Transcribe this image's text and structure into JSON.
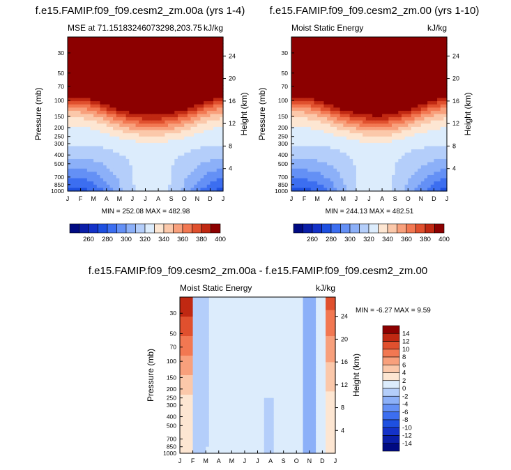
{
  "panels": {
    "left": {
      "title": "f.e15.FAMIP.f09_f09.cesm2_zm.00a (yrs 1-4)",
      "subtitle_left": "MSE at 71.15183246073298,203.75",
      "subtitle_right": "kJ/kg",
      "minmax": "MIN = 252.08  MAX = 482.98"
    },
    "right": {
      "title": "f.e15.FAMIP.f09_f09.cesm2_zm.00 (yrs 1-10)",
      "subtitle_left": "Moist Static Energy",
      "subtitle_right": "kJ/kg",
      "minmax": "MIN = 244.13  MAX = 482.51"
    },
    "diff": {
      "title": "f.e15.FAMIP.f09_f09.cesm2_zm.00a - f.e15.FAMIP.f09_f09.cesm2_zm.00",
      "subtitle_left": "Moist Static Energy",
      "subtitle_right": "kJ/kg",
      "minmax": "MIN =  -6.27  MAX =   9.59"
    }
  },
  "chart_data": [
    {
      "type": "heatmap",
      "title": "f.e15.FAMIP.f09_f09.cesm2_zm.00a (yrs 1-4)",
      "subtitle": "MSE at 71.15183246073298,203.75",
      "units": "kJ/kg",
      "xlabel": "",
      "ylabel": "Pressure (mb)",
      "ylabel_right": "Height (km)",
      "x_ticks": [
        "J",
        "F",
        "M",
        "A",
        "M",
        "J",
        "J",
        "A",
        "S",
        "O",
        "N",
        "D",
        "J"
      ],
      "y_ticks": [
        30,
        50,
        70,
        100,
        150,
        200,
        250,
        300,
        400,
        500,
        700,
        850,
        1000
      ],
      "height_ticks": [
        4,
        8,
        12,
        16,
        20,
        24
      ],
      "ylim": [
        1000,
        20
      ],
      "levels": [
        260,
        270,
        280,
        290,
        300,
        310,
        320,
        330,
        340,
        350,
        360,
        370,
        380,
        390,
        400
      ],
      "colorbar_labels": [
        "260",
        "280",
        "300",
        "320",
        "340",
        "360",
        "380",
        "400"
      ],
      "min": 252.08,
      "max": 482.98
    },
    {
      "type": "heatmap",
      "title": "f.e15.FAMIP.f09_f09.cesm2_zm.00 (yrs 1-10)",
      "subtitle": "Moist Static Energy",
      "units": "kJ/kg",
      "xlabel": "",
      "ylabel": "Pressure (mb)",
      "ylabel_right": "Height (km)",
      "x_ticks": [
        "J",
        "F",
        "M",
        "A",
        "M",
        "J",
        "J",
        "A",
        "S",
        "O",
        "N",
        "D",
        "J"
      ],
      "y_ticks": [
        30,
        50,
        70,
        100,
        150,
        200,
        250,
        300,
        400,
        500,
        700,
        850,
        1000
      ],
      "height_ticks": [
        4,
        8,
        12,
        16,
        20,
        24
      ],
      "ylim": [
        1000,
        20
      ],
      "levels": [
        260,
        270,
        280,
        290,
        300,
        310,
        320,
        330,
        340,
        350,
        360,
        370,
        380,
        390,
        400
      ],
      "colorbar_labels": [
        "260",
        "280",
        "300",
        "320",
        "340",
        "360",
        "380",
        "400"
      ],
      "min": 244.13,
      "max": 482.51
    },
    {
      "type": "heatmap",
      "title": "f.e15.FAMIP.f09_f09.cesm2_zm.00a - f.e15.FAMIP.f09_f09.cesm2_zm.00",
      "subtitle": "Moist Static Energy",
      "units": "kJ/kg",
      "xlabel": "",
      "ylabel": "Pressure (mb)",
      "ylabel_right": "Height (km)",
      "x_ticks": [
        "J",
        "F",
        "M",
        "A",
        "M",
        "J",
        "J",
        "A",
        "S",
        "O",
        "N",
        "D",
        "J"
      ],
      "y_ticks": [
        30,
        50,
        70,
        100,
        150,
        200,
        250,
        300,
        400,
        500,
        700,
        850,
        1000
      ],
      "height_ticks": [
        4,
        8,
        12,
        16,
        20,
        24
      ],
      "ylim": [
        1000,
        20
      ],
      "levels": [
        -14,
        -12,
        -10,
        -8,
        -6,
        -4,
        -2,
        0,
        2,
        4,
        6,
        8,
        10,
        12,
        14
      ],
      "colorbar_labels": [
        "14",
        "12",
        "10",
        "8",
        "6",
        "4",
        "2",
        "0",
        "-2",
        "-4",
        "-6",
        "-8",
        "-10",
        "-12",
        "-14"
      ],
      "min": -6.27,
      "max": 9.59
    }
  ],
  "colors": {
    "palette16": [
      "#000a82",
      "#0a1ea8",
      "#1432c8",
      "#1e50e0",
      "#3c6ef0",
      "#6490f5",
      "#8cb0f8",
      "#b4cefa",
      "#dcecfc",
      "#fde6d2",
      "#fbc8aa",
      "#f8a07c",
      "#f27852",
      "#e0502e",
      "#c02812",
      "#8c0000"
    ],
    "diff_base": "#fde6d2"
  }
}
